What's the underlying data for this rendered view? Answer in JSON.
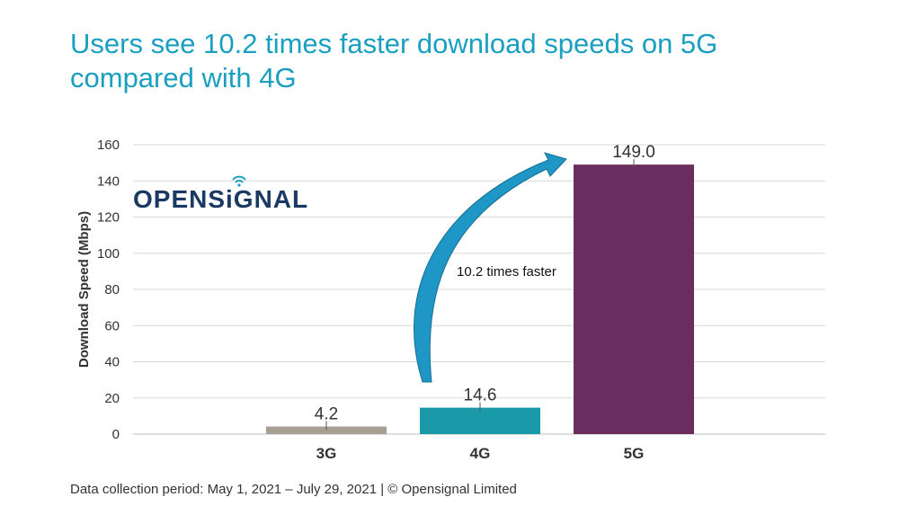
{
  "title_line1": "Users see 10.2 times faster download speeds on 5G",
  "title_line2": "compared with 4G",
  "logo_text": "OPENSiGNAL",
  "footer": "Data collection period: May 1, 2021 – July 29, 2021 | © Opensignal Limited",
  "annotation": "10.2 times faster",
  "colors": {
    "title": "#1a9fc0",
    "bar_3g": "#a89f94",
    "bar_4g": "#1a9aa8",
    "bar_5g": "#6b2c5f",
    "arrow": "#1e97c6"
  },
  "chart_data": {
    "type": "bar",
    "title": "Users see 10.2 times faster download speeds on 5G compared with 4G",
    "xlabel": "",
    "ylabel": "Download Speed (Mbps)",
    "categories": [
      "3G",
      "4G",
      "5G"
    ],
    "values": [
      4.2,
      14.6,
      149.0
    ],
    "value_labels": [
      "4.2",
      "14.6",
      "149.0"
    ],
    "ylim": [
      0,
      160
    ],
    "yticks": [
      0,
      20,
      40,
      60,
      80,
      100,
      120,
      140,
      160
    ],
    "grid": true
  }
}
